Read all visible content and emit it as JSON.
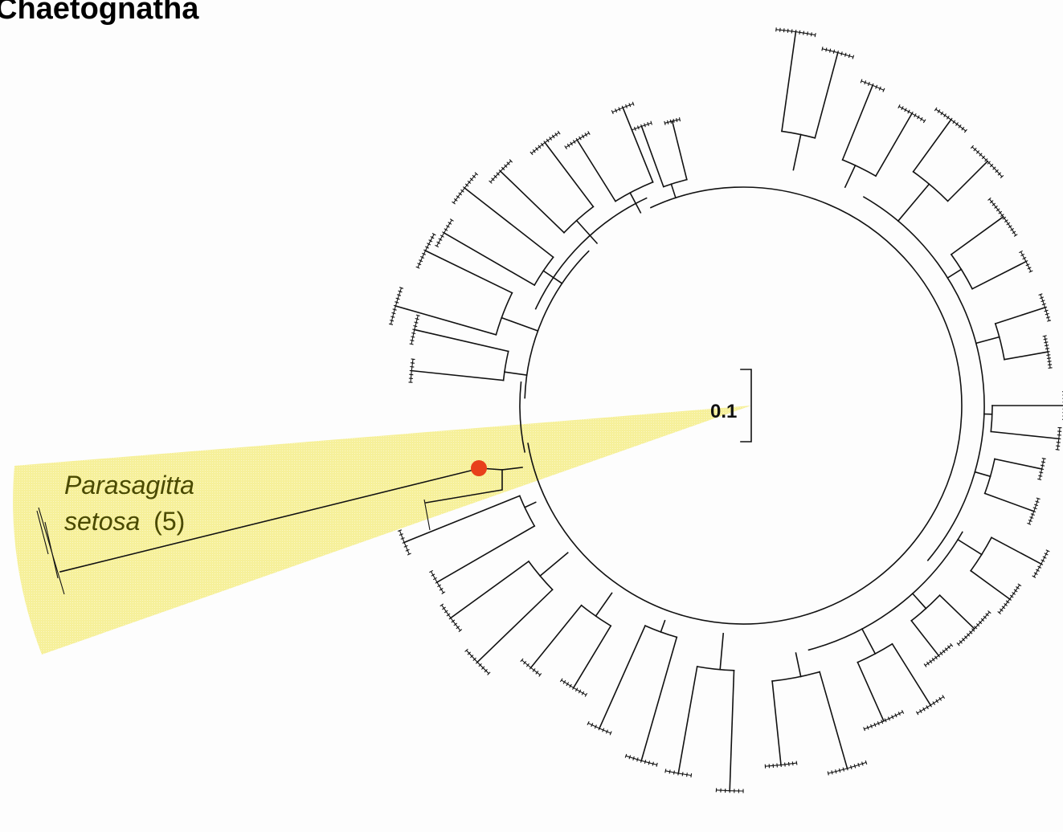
{
  "title": "Chaetognatha",
  "highlight": {
    "name": "Parasagitta",
    "species": "setosa",
    "count": "(5)",
    "fill_color": "#f5ef8e",
    "marker_color": "#e8401c"
  },
  "scale_bar": {
    "label": "0.1"
  },
  "colors": {
    "branch": "#111111",
    "background": "#fdfdfd"
  }
}
